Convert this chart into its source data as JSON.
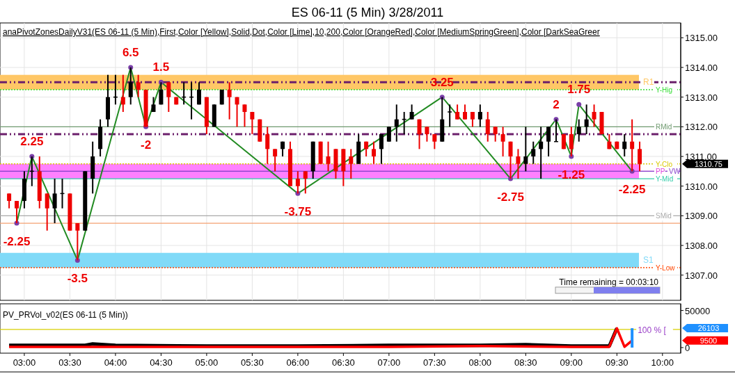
{
  "chart_data": [
    {
      "type": "candlestick",
      "title": "ES 06-11 (5 Min)  3/28/2011",
      "x": [
        "2011-03-28T02:50",
        "2011-03-28T02:55",
        "2011-03-28T03:00",
        "2011-03-28T03:05",
        "2011-03-28T03:10",
        "2011-03-28T03:15",
        "2011-03-28T03:20",
        "2011-03-28T03:25",
        "2011-03-28T03:30",
        "2011-03-28T03:35",
        "2011-03-28T03:40",
        "2011-03-28T03:45",
        "2011-03-28T03:50",
        "2011-03-28T03:55",
        "2011-03-28T04:00",
        "2011-03-28T04:05",
        "2011-03-28T04:10",
        "2011-03-28T04:15",
        "2011-03-28T04:20",
        "2011-03-28T04:25",
        "2011-03-28T04:30",
        "2011-03-28T04:35",
        "2011-03-28T04:40",
        "2011-03-28T04:45",
        "2011-03-28T04:50",
        "2011-03-28T04:55",
        "2011-03-28T05:00",
        "2011-03-28T05:05",
        "2011-03-28T05:10",
        "2011-03-28T05:15",
        "2011-03-28T05:20",
        "2011-03-28T05:25",
        "2011-03-28T05:30",
        "2011-03-28T05:35",
        "2011-03-28T05:40",
        "2011-03-28T05:45",
        "2011-03-28T05:50",
        "2011-03-28T05:55",
        "2011-03-28T06:00",
        "2011-03-28T06:05",
        "2011-03-28T06:10",
        "2011-03-28T06:15",
        "2011-03-28T06:20",
        "2011-03-28T06:25",
        "2011-03-28T06:30",
        "2011-03-28T06:35",
        "2011-03-28T06:40",
        "2011-03-28T06:45",
        "2011-03-28T06:50",
        "2011-03-28T06:55",
        "2011-03-28T07:00",
        "2011-03-28T07:05",
        "2011-03-28T07:10",
        "2011-03-28T07:15",
        "2011-03-28T07:20",
        "2011-03-28T07:25",
        "2011-03-28T07:30",
        "2011-03-28T07:35",
        "2011-03-28T07:40",
        "2011-03-28T07:45",
        "2011-03-28T07:50",
        "2011-03-28T07:55",
        "2011-03-28T08:00",
        "2011-03-28T08:05",
        "2011-03-28T08:10",
        "2011-03-28T08:15",
        "2011-03-28T08:20",
        "2011-03-28T08:25",
        "2011-03-28T08:30",
        "2011-03-28T08:35",
        "2011-03-28T08:40",
        "2011-03-28T08:45",
        "2011-03-28T08:50",
        "2011-03-28T08:55",
        "2011-03-28T09:00",
        "2011-03-28T09:05",
        "2011-03-28T09:10",
        "2011-03-28T09:15",
        "2011-03-28T09:20",
        "2011-03-28T09:25",
        "2011-03-28T09:30",
        "2011-03-28T09:35",
        "2011-03-28T09:40",
        "2011-03-28T09:45"
      ],
      "ohlc": [
        [
          1309.75,
          1309.75,
          1309.25,
          1309.5
        ],
        [
          1309.5,
          1309.5,
          1308.75,
          1309.25
        ],
        [
          1309.5,
          1310.5,
          1309.25,
          1310.25
        ],
        [
          1310.5,
          1311.0,
          1310.0,
          1310.5
        ],
        [
          1310.5,
          1311.0,
          1309.25,
          1309.5
        ],
        [
          1309.75,
          1309.75,
          1308.5,
          1309.25
        ],
        [
          1309.25,
          1310.25,
          1308.75,
          1309.75
        ],
        [
          1309.75,
          1310.25,
          1309.25,
          1309.75
        ],
        [
          1309.75,
          1309.75,
          1308.5,
          1308.5
        ],
        [
          1308.75,
          1308.75,
          1307.5,
          1308.5
        ],
        [
          1308.5,
          1310.5,
          1308.5,
          1310.5
        ],
        [
          1310.25,
          1311.5,
          1309.75,
          1311.0
        ],
        [
          1311.25,
          1312.25,
          1311.0,
          1312.0
        ],
        [
          1312.25,
          1313.75,
          1312.0,
          1313.0
        ],
        [
          1313.0,
          1313.75,
          1312.75,
          1313.0
        ],
        [
          1313.0,
          1313.75,
          1312.5,
          1312.75
        ],
        [
          1313.0,
          1314.0,
          1312.75,
          1313.5
        ],
        [
          1313.5,
          1313.75,
          1313.0,
          1313.25
        ],
        [
          1313.25,
          1313.25,
          1312.0,
          1312.0
        ],
        [
          1312.5,
          1313.0,
          1312.5,
          1312.75
        ],
        [
          1312.75,
          1313.5,
          1312.75,
          1313.25
        ],
        [
          1313.5,
          1313.5,
          1312.5,
          1313.0
        ],
        [
          1313.0,
          1313.0,
          1312.75,
          1312.75
        ],
        [
          1313.0,
          1313.5,
          1312.75,
          1313.0
        ],
        [
          1313.0,
          1313.5,
          1312.25,
          1313.0
        ],
        [
          1312.75,
          1313.5,
          1312.75,
          1313.25
        ],
        [
          1313.0,
          1313.0,
          1311.75,
          1312.0
        ],
        [
          1312.0,
          1312.75,
          1312.0,
          1312.75
        ],
        [
          1312.75,
          1313.25,
          1312.75,
          1313.25
        ],
        [
          1313.25,
          1313.5,
          1312.25,
          1313.0
        ],
        [
          1313.0,
          1313.0,
          1312.0,
          1312.75
        ],
        [
          1312.75,
          1312.75,
          1312.0,
          1312.5
        ],
        [
          1312.5,
          1312.5,
          1311.75,
          1312.25
        ],
        [
          1312.25,
          1312.25,
          1311.5,
          1311.5
        ],
        [
          1311.75,
          1312.0,
          1310.75,
          1311.25
        ],
        [
          1311.25,
          1311.25,
          1310.5,
          1311.0
        ],
        [
          1311.25,
          1311.5,
          1311.0,
          1311.5
        ],
        [
          1311.25,
          1311.5,
          1310.0,
          1310.0
        ],
        [
          1310.25,
          1310.5,
          1309.75,
          1310.0
        ],
        [
          1310.5,
          1310.5,
          1309.75,
          1310.25
        ],
        [
          1310.5,
          1311.5,
          1310.25,
          1311.5
        ],
        [
          1311.5,
          1311.5,
          1310.75,
          1310.75
        ],
        [
          1311.0,
          1311.5,
          1310.5,
          1310.75
        ],
        [
          1311.25,
          1311.25,
          1310.25,
          1310.5
        ],
        [
          1311.25,
          1311.25,
          1310.0,
          1310.5
        ],
        [
          1311.0,
          1311.25,
          1310.25,
          1310.75
        ],
        [
          1310.75,
          1311.75,
          1310.75,
          1311.5
        ],
        [
          1311.5,
          1311.5,
          1311.0,
          1311.25
        ],
        [
          1311.25,
          1311.5,
          1310.75,
          1311.0
        ],
        [
          1311.25,
          1311.75,
          1310.75,
          1311.75
        ],
        [
          1311.5,
          1312.0,
          1311.5,
          1312.0
        ],
        [
          1312.0,
          1312.75,
          1311.5,
          1312.25
        ],
        [
          1312.25,
          1312.5,
          1311.75,
          1312.25
        ],
        [
          1312.25,
          1312.75,
          1312.25,
          1312.5
        ],
        [
          1312.25,
          1312.25,
          1311.25,
          1311.75
        ],
        [
          1312.0,
          1312.0,
          1311.5,
          1311.75
        ],
        [
          1311.75,
          1311.75,
          1311.25,
          1311.5
        ],
        [
          1311.5,
          1313.0,
          1311.5,
          1312.25
        ],
        [
          1312.5,
          1312.75,
          1312.0,
          1312.5
        ],
        [
          1312.5,
          1312.75,
          1312.25,
          1312.25
        ],
        [
          1312.5,
          1312.75,
          1312.25,
          1312.25
        ],
        [
          1312.5,
          1312.5,
          1312.0,
          1312.25
        ],
        [
          1312.25,
          1312.75,
          1312.0,
          1312.5
        ],
        [
          1312.25,
          1312.5,
          1311.5,
          1311.75
        ],
        [
          1312.0,
          1312.0,
          1311.5,
          1311.75
        ],
        [
          1311.75,
          1312.0,
          1311.0,
          1311.5
        ],
        [
          1311.5,
          1311.5,
          1310.25,
          1311.0
        ],
        [
          1311.0,
          1311.25,
          1310.25,
          1310.75
        ],
        [
          1310.75,
          1312.0,
          1310.5,
          1311.0
        ],
        [
          1311.0,
          1311.5,
          1310.75,
          1311.25
        ],
        [
          1311.25,
          1312.0,
          1310.25,
          1311.5
        ],
        [
          1311.5,
          1312.0,
          1311.0,
          1312.0
        ],
        [
          1311.5,
          1312.25,
          1311.5,
          1311.5
        ],
        [
          1311.75,
          1311.75,
          1311.25,
          1311.25
        ],
        [
          1311.75,
          1312.0,
          1311.0,
          1311.25
        ],
        [
          1311.75,
          1312.25,
          1311.5,
          1312.0
        ],
        [
          1312.0,
          1312.75,
          1311.75,
          1312.25
        ],
        [
          1312.5,
          1312.75,
          1312.0,
          1312.25
        ],
        [
          1312.5,
          1312.5,
          1311.75,
          1311.75
        ],
        [
          1311.5,
          1311.75,
          1311.25,
          1311.25
        ],
        [
          1311.5,
          1311.5,
          1311.25,
          1311.25
        ],
        [
          1311.25,
          1311.75,
          1311.0,
          1311.5
        ],
        [
          1311.5,
          1312.25,
          1310.5,
          1311.25
        ],
        [
          1311.25,
          1311.5,
          1310.5,
          1310.75
        ]
      ],
      "series": [
        {
          "type": "line",
          "color": "#228b22",
          "x": [
            "2011-03-28T02:55",
            "2011-03-28T03:05",
            "2011-03-28T03:35",
            "2011-03-28T04:10",
            "2011-03-28T04:20",
            "2011-03-28T04:30",
            "2011-03-28T06:00",
            "2011-03-28T07:35",
            "2011-03-28T08:20",
            "2011-03-28T08:50",
            "2011-03-28T09:00",
            "2011-03-28T09:05",
            "2011-03-28T09:40"
          ],
          "values": [
            1308.75,
            1311.0,
            1307.5,
            1314.0,
            1312.0,
            1313.5,
            1309.75,
            1313.0,
            1310.25,
            1312.25,
            1311.0,
            1312.75,
            1310.5
          ]
        }
      ],
      "marker": "circle",
      "xlim": [
        "2011-03-28T02:44",
        "2011-03-28T10:12"
      ],
      "xticks": [
        {
          "value": "2011-03-28T03:00",
          "label": null
        },
        {
          "value": "2011-03-28T03:30",
          "label": null
        },
        {
          "value": "2011-03-28T04:00",
          "label": null
        },
        {
          "value": "2011-03-28T04:30",
          "label": null
        },
        {
          "value": "2011-03-28T05:00",
          "label": null
        },
        {
          "value": "2011-03-28T05:30",
          "label": null
        },
        {
          "value": "2011-03-28T06:00",
          "label": null
        },
        {
          "value": "2011-03-28T06:30",
          "label": null
        },
        {
          "value": "2011-03-28T07:00",
          "label": null
        },
        {
          "value": "2011-03-28T07:30",
          "label": null
        },
        {
          "value": "2011-03-28T08:00",
          "label": null
        },
        {
          "value": "2011-03-28T08:30",
          "label": null
        },
        {
          "value": "2011-03-28T09:00",
          "label": null
        },
        {
          "value": "2011-03-28T09:30",
          "label": null
        },
        {
          "value": "2011-03-28T10:00",
          "label": null
        }
      ],
      "ylim": [
        1306.15,
        1315.5
      ],
      "yticks": [
        {
          "value": 1307,
          "label": "1307.00"
        },
        {
          "value": 1308,
          "label": "1308.00"
        },
        {
          "value": 1309,
          "label": "1309.00"
        },
        {
          "value": 1310,
          "label": "1310.00"
        },
        {
          "value": 1311,
          "label": "1311.00"
        },
        {
          "value": 1312,
          "label": "1312.00"
        },
        {
          "value": 1313,
          "label": "1313.00"
        },
        {
          "value": 1314,
          "label": "1314.00"
        },
        {
          "value": 1315,
          "label": "1315.00"
        }
      ],
      "tick_labels": "y",
      "grid": true,
      "bands": [
        {
          "axis": "y",
          "from": 1313.25,
          "to": 1313.75,
          "label": "R1",
          "color": "#ffc766"
        },
        {
          "axis": "y",
          "from": 1310.25,
          "to": 1310.75,
          "color": "#ff80ff"
        },
        {
          "axis": "y",
          "from": 1307.25,
          "to": 1307.75,
          "label": "S1",
          "color": "#80daf8"
        }
      ],
      "ref_lines": [
        {
          "axis": "y",
          "value": 1313.5,
          "color": "#6b1f6b",
          "line_style": "dashed"
        },
        {
          "axis": "y",
          "value": 1313.25,
          "label": "Y-Hig",
          "color": "#33dd33",
          "line_style": "dotted"
        },
        {
          "axis": "y",
          "value": 1312,
          "label": "RMid",
          "color": "#6f9a6f"
        },
        {
          "axis": "y",
          "value": 1311.75,
          "color": "#6b1f6b",
          "line_style": "dashed"
        },
        {
          "axis": "y",
          "value": 1310.75,
          "label": "Y-Clo",
          "color": "#d8c800",
          "line_style": "dotted"
        },
        {
          "axis": "y",
          "value": 1310.5,
          "label": "PP",
          "color": "#dd44dd"
        },
        {
          "axis": "y",
          "value": 1310.5,
          "label": "VW",
          "color": "#8844cc"
        },
        {
          "axis": "y",
          "value": 1310.25,
          "label": "Y-Mid",
          "color": "#33ccaa"
        },
        {
          "axis": "y",
          "value": 1309,
          "label": "SMid",
          "color": "#aaaaaa"
        },
        {
          "axis": "y",
          "value": 1308.75,
          "color": "#f4a070"
        },
        {
          "axis": "y",
          "value": 1307.25,
          "label": "Y-Low",
          "color": "#ff4500",
          "line_style": "dotted"
        }
      ],
      "annotations": [
        "anaPivotZonesDailyV31(ES  06-11  (5  Min),First,Color  [Yellow],Solid,Dot,Color  [Lime],10,200,Color  [OrangeRed],Color  [MediumSpringGreen],Color  [DarkSeaGreer",
        "Time remaining = 00:03:10",
        {
          "text": "-2.25",
          "x": "2011-03-28T02:55",
          "y": 1308.75
        },
        {
          "text": "2.25",
          "x": "2011-03-28T03:05",
          "y": 1311.0
        },
        {
          "text": "-3.5",
          "x": "2011-03-28T03:35",
          "y": 1307.5
        },
        {
          "text": "6.5",
          "x": "2011-03-28T04:10",
          "y": 1314.0
        },
        {
          "text": "-2",
          "x": "2011-03-28T04:20",
          "y": 1312.0
        },
        {
          "text": "1.5",
          "x": "2011-03-28T04:30",
          "y": 1313.5
        },
        {
          "text": "-3.75",
          "x": "2011-03-28T06:00",
          "y": 1309.75
        },
        {
          "text": "3.25",
          "x": "2011-03-28T07:35",
          "y": 1313.0
        },
        {
          "text": "-2.75",
          "x": "2011-03-28T08:20",
          "y": 1310.25
        },
        {
          "text": "2",
          "x": "2011-03-28T08:50",
          "y": 1312.25
        },
        {
          "text": "-1.25",
          "x": "2011-03-28T09:00",
          "y": 1311.0
        },
        {
          "text": "1.75",
          "x": "2011-03-28T09:05",
          "y": 1312.75
        },
        {
          "text": "-2.25",
          "x": "2011-03-28T09:40",
          "y": 1310.5
        },
        "1310.75"
      ]
    },
    {
      "type": "line",
      "title": "PV_PRVol_v02(ES 06-11 (5 Min))",
      "series": [
        {
          "color": "#000000",
          "x": [
            "2011-03-28T02:50",
            "2011-03-28T03:40",
            "2011-03-28T03:45",
            "2011-03-28T04:00",
            "2011-03-28T05:00",
            "2011-03-28T06:00",
            "2011-03-28T07:00",
            "2011-03-28T08:00",
            "2011-03-28T08:30",
            "2011-03-28T09:00",
            "2011-03-28T09:25",
            "2011-03-28T09:30"
          ],
          "values": [
            3000,
            3000,
            5000,
            3000,
            2000,
            2000,
            3000,
            3000,
            4000,
            2000,
            2000,
            26000
          ]
        },
        {
          "color": "#ff0000",
          "x": [
            "2011-03-28T02:50",
            "2011-03-28T04:00",
            "2011-03-28T05:00",
            "2011-03-28T06:00",
            "2011-03-28T07:00",
            "2011-03-28T08:00",
            "2011-03-28T09:00",
            "2011-03-28T09:25",
            "2011-03-28T09:30",
            "2011-03-28T09:35",
            "2011-03-28T09:40"
          ],
          "values": [
            1000,
            1000,
            1000,
            1000,
            1000,
            2000,
            1000,
            1000,
            26000,
            1000,
            9500
          ]
        },
        {
          "type": "bar",
          "color": "#1e90ff",
          "x": [
            "2011-03-28T09:40"
          ],
          "values": [
            26103
          ]
        }
      ],
      "xlim": [
        "2011-03-28T02:44",
        "2011-03-28T10:12"
      ],
      "xticks": [
        {
          "value": "2011-03-28T03:00",
          "label": "03:00"
        },
        {
          "value": "2011-03-28T03:30",
          "label": "03:30"
        },
        {
          "value": "2011-03-28T04:00",
          "label": "04:00"
        },
        {
          "value": "2011-03-28T04:30",
          "label": "04:30"
        },
        {
          "value": "2011-03-28T05:00",
          "label": "05:00"
        },
        {
          "value": "2011-03-28T05:30",
          "label": "05:30"
        },
        {
          "value": "2011-03-28T06:00",
          "label": "06:00"
        },
        {
          "value": "2011-03-28T06:30",
          "label": "06:30"
        },
        {
          "value": "2011-03-28T07:00",
          "label": "07:00"
        },
        {
          "value": "2011-03-28T07:30",
          "label": "07:30"
        },
        {
          "value": "2011-03-28T08:00",
          "label": "08:00"
        },
        {
          "value": "2011-03-28T08:30",
          "label": "08:30"
        },
        {
          "value": "2011-03-28T09:00",
          "label": "09:00"
        },
        {
          "value": "2011-03-28T09:30",
          "label": "09:30"
        },
        {
          "value": "2011-03-28T10:00",
          "label": "10:00"
        }
      ],
      "ylim": [
        -7500,
        59000
      ],
      "yticks": [
        0,
        50000
      ],
      "ref_lines": [
        {
          "axis": "y",
          "value": 24500,
          "color": "#d8d000"
        }
      ],
      "annotations": [
        "100 % [",
        "26103",
        "9500"
      ]
    }
  ]
}
